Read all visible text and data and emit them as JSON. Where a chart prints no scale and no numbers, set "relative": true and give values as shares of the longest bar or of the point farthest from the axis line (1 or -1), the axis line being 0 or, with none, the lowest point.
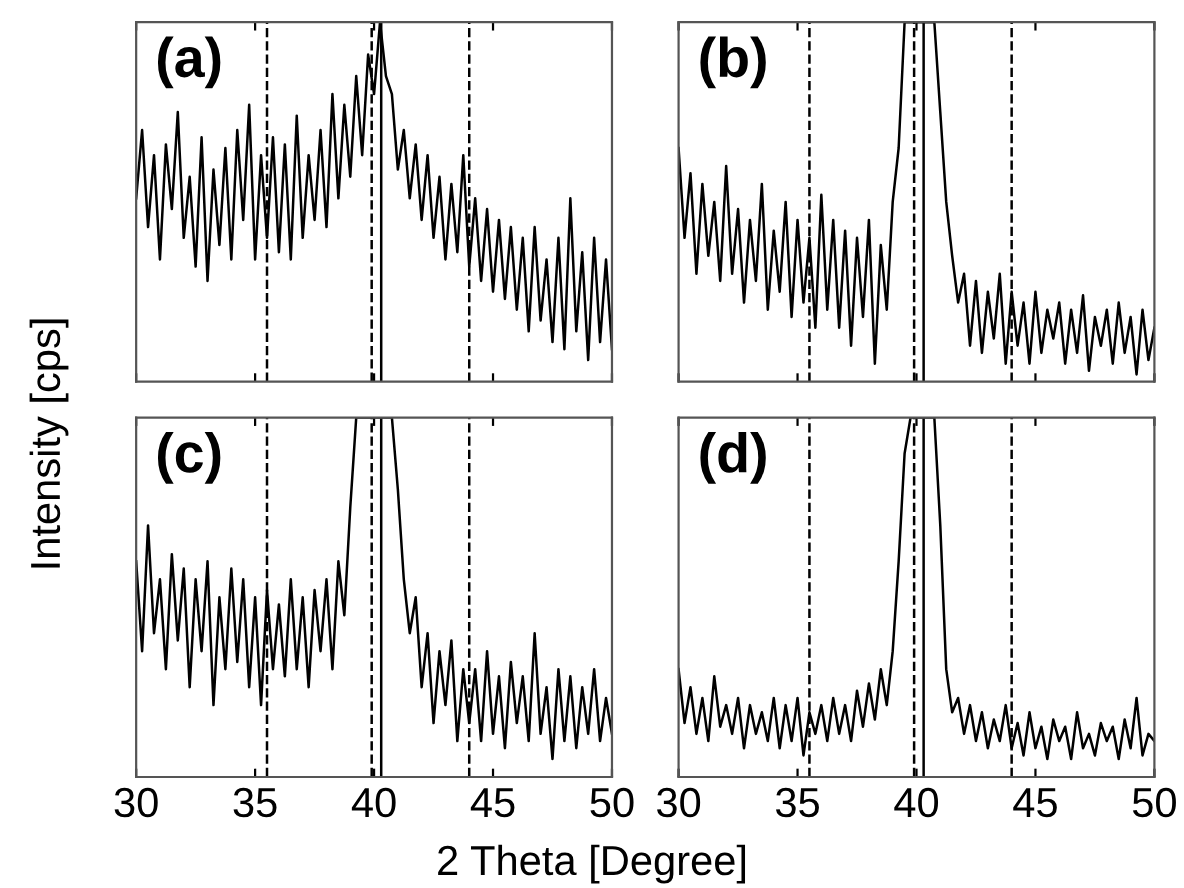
{
  "chart_data": [
    {
      "type": "line",
      "title": "(a)",
      "ylabel": "Intensity [cps]",
      "relative": true,
      "xlim": [
        30,
        50
      ],
      "xticks": [
        30,
        35,
        40,
        45,
        50
      ],
      "tick_labels": false,
      "grid": false,
      "marker": "none",
      "line_style": "solid",
      "x": [
        30,
        30.25,
        30.5,
        30.75,
        31,
        31.25,
        31.5,
        31.75,
        32,
        32.25,
        32.5,
        32.75,
        33,
        33.25,
        33.5,
        33.75,
        34,
        34.25,
        34.5,
        34.75,
        35,
        35.25,
        35.5,
        35.75,
        36,
        36.25,
        36.5,
        36.75,
        37,
        37.25,
        37.5,
        37.75,
        38,
        38.25,
        38.5,
        38.75,
        39,
        39.25,
        39.5,
        39.75,
        40,
        40.25,
        40.5,
        40.75,
        41,
        41.25,
        41.5,
        41.75,
        42,
        42.25,
        42.5,
        42.75,
        43,
        43.25,
        43.5,
        43.75,
        44,
        44.25,
        44.5,
        44.75,
        45,
        45.25,
        45.5,
        45.75,
        46,
        46.25,
        46.5,
        46.75,
        47,
        47.25,
        47.5,
        47.75,
        48,
        48.25,
        48.5,
        48.75,
        49,
        49.25,
        49.5,
        49.75,
        50
      ],
      "series": [
        {
          "color": "#000000",
          "values": [
            0.51,
            0.7,
            0.43,
            0.63,
            0.34,
            0.66,
            0.48,
            0.75,
            0.4,
            0.57,
            0.32,
            0.68,
            0.28,
            0.59,
            0.38,
            0.65,
            0.34,
            0.7,
            0.45,
            0.77,
            0.34,
            0.63,
            0.4,
            0.68,
            0.36,
            0.66,
            0.34,
            0.74,
            0.4,
            0.63,
            0.45,
            0.7,
            0.43,
            0.8,
            0.51,
            0.77,
            0.57,
            0.85,
            0.63,
            0.91,
            0.8,
            1.0,
            0.85,
            0.8,
            0.59,
            0.7,
            0.51,
            0.66,
            0.45,
            0.63,
            0.4,
            0.57,
            0.34,
            0.55,
            0.36,
            0.63,
            0.32,
            0.51,
            0.28,
            0.48,
            0.25,
            0.45,
            0.23,
            0.43,
            0.2,
            0.4,
            0.14,
            0.43,
            0.17,
            0.34,
            0.11,
            0.4,
            0.09,
            0.51,
            0.14,
            0.36,
            0.06,
            0.4,
            0.11,
            0.34,
            0.09
          ]
        }
      ],
      "ref_lines": [
        {
          "axis": "x",
          "value": 35.5,
          "color": "#000000",
          "line_style": "dashed"
        },
        {
          "axis": "x",
          "value": 39.9,
          "color": "#000000",
          "line_style": "dashed"
        },
        {
          "axis": "x",
          "value": 44,
          "color": "#000000",
          "line_style": "dashed"
        },
        {
          "axis": "x",
          "value": 40.3,
          "color": "#000000",
          "line_style": "solid"
        }
      ]
    },
    {
      "type": "line",
      "title": "(b)",
      "relative": true,
      "xlim": [
        30,
        50
      ],
      "xticks": [
        30,
        35,
        40,
        45,
        50
      ],
      "tick_labels": false,
      "grid": false,
      "marker": "none",
      "line_style": "solid",
      "x": [
        30,
        30.25,
        30.5,
        30.75,
        31,
        31.25,
        31.5,
        31.75,
        32,
        32.25,
        32.5,
        32.75,
        33,
        33.25,
        33.5,
        33.75,
        34,
        34.25,
        34.5,
        34.75,
        35,
        35.25,
        35.5,
        35.75,
        36,
        36.25,
        36.5,
        36.75,
        37,
        37.25,
        37.5,
        37.75,
        38,
        38.25,
        38.5,
        38.75,
        39,
        39.25,
        39.5,
        39.75,
        40,
        40.25,
        40.5,
        40.75,
        41,
        41.25,
        41.5,
        41.75,
        42,
        42.25,
        42.5,
        42.75,
        43,
        43.25,
        43.5,
        43.75,
        44,
        44.25,
        44.5,
        44.75,
        45,
        45.25,
        45.5,
        45.75,
        46,
        46.25,
        46.5,
        46.75,
        47,
        47.25,
        47.5,
        47.75,
        48,
        48.25,
        48.5,
        48.75,
        49,
        49.25,
        49.5,
        49.75,
        50
      ],
      "series": [
        {
          "color": "#000000",
          "values": [
            0.65,
            0.4,
            0.58,
            0.3,
            0.55,
            0.35,
            0.5,
            0.28,
            0.6,
            0.3,
            0.48,
            0.22,
            0.45,
            0.28,
            0.55,
            0.2,
            0.42,
            0.25,
            0.5,
            0.18,
            0.45,
            0.22,
            0.4,
            0.15,
            0.52,
            0.2,
            0.45,
            0.15,
            0.42,
            0.1,
            0.4,
            0.18,
            0.45,
            0.05,
            0.38,
            0.2,
            0.5,
            0.65,
            1.0,
            1.0,
            1.0,
            1.0,
            1.0,
            1.0,
            0.75,
            0.5,
            0.35,
            0.22,
            0.3,
            0.1,
            0.28,
            0.08,
            0.25,
            0.12,
            0.3,
            0.05,
            0.25,
            0.1,
            0.22,
            0.05,
            0.25,
            0.08,
            0.2,
            0.12,
            0.22,
            0.05,
            0.2,
            0.08,
            0.24,
            0.03,
            0.18,
            0.1,
            0.2,
            0.05,
            0.22,
            0.08,
            0.18,
            0.02,
            0.2,
            0.06,
            0.15
          ]
        }
      ],
      "ref_lines": [
        {
          "axis": "x",
          "value": 35.5,
          "color": "#000000",
          "line_style": "dashed"
        },
        {
          "axis": "x",
          "value": 39.9,
          "color": "#000000",
          "line_style": "dashed"
        },
        {
          "axis": "x",
          "value": 44,
          "color": "#000000",
          "line_style": "dashed"
        },
        {
          "axis": "x",
          "value": 40.3,
          "color": "#000000",
          "line_style": "solid"
        }
      ]
    },
    {
      "type": "line",
      "title": "(c)",
      "xlabel": "2 Theta [Degree]",
      "relative": true,
      "xlim": [
        30,
        50
      ],
      "xticks": [
        30,
        35,
        40,
        45,
        50
      ],
      "tick_labels": "x",
      "grid": false,
      "marker": "none",
      "line_style": "solid",
      "x": [
        30,
        30.25,
        30.5,
        30.75,
        31,
        31.25,
        31.5,
        31.75,
        32,
        32.25,
        32.5,
        32.75,
        33,
        33.25,
        33.5,
        33.75,
        34,
        34.25,
        34.5,
        34.75,
        35,
        35.25,
        35.5,
        35.75,
        36,
        36.25,
        36.5,
        36.75,
        37,
        37.25,
        37.5,
        37.75,
        38,
        38.25,
        38.5,
        38.75,
        39,
        39.25,
        39.5,
        39.75,
        40,
        40.25,
        40.5,
        40.75,
        41,
        41.25,
        41.5,
        41.75,
        42,
        42.25,
        42.5,
        42.75,
        43,
        43.25,
        43.5,
        43.75,
        44,
        44.25,
        44.5,
        44.75,
        45,
        45.25,
        45.5,
        45.75,
        46,
        46.25,
        46.5,
        46.75,
        47,
        47.25,
        47.5,
        47.75,
        48,
        48.25,
        48.5,
        48.75,
        49,
        49.25,
        49.5,
        49.75,
        50
      ],
      "series": [
        {
          "color": "#000000",
          "values": [
            0.6,
            0.35,
            0.7,
            0.4,
            0.55,
            0.3,
            0.62,
            0.38,
            0.58,
            0.25,
            0.55,
            0.35,
            0.6,
            0.2,
            0.5,
            0.3,
            0.58,
            0.32,
            0.55,
            0.25,
            0.5,
            0.2,
            0.52,
            0.3,
            0.48,
            0.28,
            0.55,
            0.3,
            0.5,
            0.25,
            0.52,
            0.35,
            0.55,
            0.3,
            0.6,
            0.45,
            0.75,
            1.0,
            1.0,
            1.0,
            1.0,
            1.0,
            1.0,
            1.0,
            0.8,
            0.55,
            0.4,
            0.5,
            0.25,
            0.4,
            0.15,
            0.35,
            0.2,
            0.38,
            0.1,
            0.3,
            0.15,
            0.3,
            0.1,
            0.35,
            0.12,
            0.28,
            0.08,
            0.32,
            0.15,
            0.28,
            0.1,
            0.4,
            0.12,
            0.25,
            0.05,
            0.3,
            0.1,
            0.28,
            0.08,
            0.25,
            0.12,
            0.3,
            0.1,
            0.22,
            0.12
          ]
        }
      ],
      "ref_lines": [
        {
          "axis": "x",
          "value": 35.5,
          "color": "#000000",
          "line_style": "dashed"
        },
        {
          "axis": "x",
          "value": 39.9,
          "color": "#000000",
          "line_style": "dashed"
        },
        {
          "axis": "x",
          "value": 44,
          "color": "#000000",
          "line_style": "dashed"
        },
        {
          "axis": "x",
          "value": 40.3,
          "color": "#000000",
          "line_style": "solid"
        }
      ]
    },
    {
      "type": "line",
      "title": "(d)",
      "relative": true,
      "xlim": [
        30,
        50
      ],
      "xticks": [
        30,
        35,
        40,
        45,
        50
      ],
      "tick_labels": "x",
      "grid": false,
      "marker": "none",
      "line_style": "solid",
      "x": [
        30,
        30.25,
        30.5,
        30.75,
        31,
        31.25,
        31.5,
        31.75,
        32,
        32.25,
        32.5,
        32.75,
        33,
        33.25,
        33.5,
        33.75,
        34,
        34.25,
        34.5,
        34.75,
        35,
        35.25,
        35.5,
        35.75,
        36,
        36.25,
        36.5,
        36.75,
        37,
        37.25,
        37.5,
        37.75,
        38,
        38.25,
        38.5,
        38.75,
        39,
        39.25,
        39.5,
        39.75,
        40,
        40.25,
        40.5,
        40.75,
        41,
        41.25,
        41.5,
        41.75,
        42,
        42.25,
        42.5,
        42.75,
        43,
        43.25,
        43.5,
        43.75,
        44,
        44.25,
        44.5,
        44.75,
        45,
        45.25,
        45.5,
        45.75,
        46,
        46.25,
        46.5,
        46.75,
        47,
        47.25,
        47.5,
        47.75,
        48,
        48.25,
        48.5,
        48.75,
        49,
        49.25,
        49.5,
        49.75,
        50
      ],
      "series": [
        {
          "color": "#000000",
          "values": [
            0.3,
            0.15,
            0.25,
            0.12,
            0.22,
            0.1,
            0.28,
            0.14,
            0.2,
            0.12,
            0.22,
            0.08,
            0.2,
            0.12,
            0.18,
            0.1,
            0.22,
            0.08,
            0.2,
            0.1,
            0.22,
            0.06,
            0.18,
            0.12,
            0.2,
            0.1,
            0.22,
            0.12,
            0.2,
            0.1,
            0.24,
            0.14,
            0.26,
            0.16,
            0.3,
            0.2,
            0.35,
            0.6,
            0.9,
            1.0,
            1.0,
            1.0,
            1.0,
            1.0,
            0.7,
            0.3,
            0.18,
            0.22,
            0.12,
            0.2,
            0.1,
            0.18,
            0.08,
            0.16,
            0.1,
            0.2,
            0.08,
            0.15,
            0.06,
            0.18,
            0.08,
            0.14,
            0.05,
            0.16,
            0.1,
            0.14,
            0.05,
            0.18,
            0.08,
            0.12,
            0.06,
            0.15,
            0.1,
            0.14,
            0.05,
            0.16,
            0.08,
            0.22,
            0.06,
            0.12,
            0.1
          ]
        }
      ],
      "ref_lines": [
        {
          "axis": "x",
          "value": 35.5,
          "color": "#000000",
          "line_style": "dashed"
        },
        {
          "axis": "x",
          "value": 39.9,
          "color": "#000000",
          "line_style": "dashed"
        },
        {
          "axis": "x",
          "value": 44,
          "color": "#000000",
          "line_style": "dashed"
        },
        {
          "axis": "x",
          "value": 40.3,
          "color": "#000000",
          "line_style": "solid"
        }
      ]
    }
  ]
}
